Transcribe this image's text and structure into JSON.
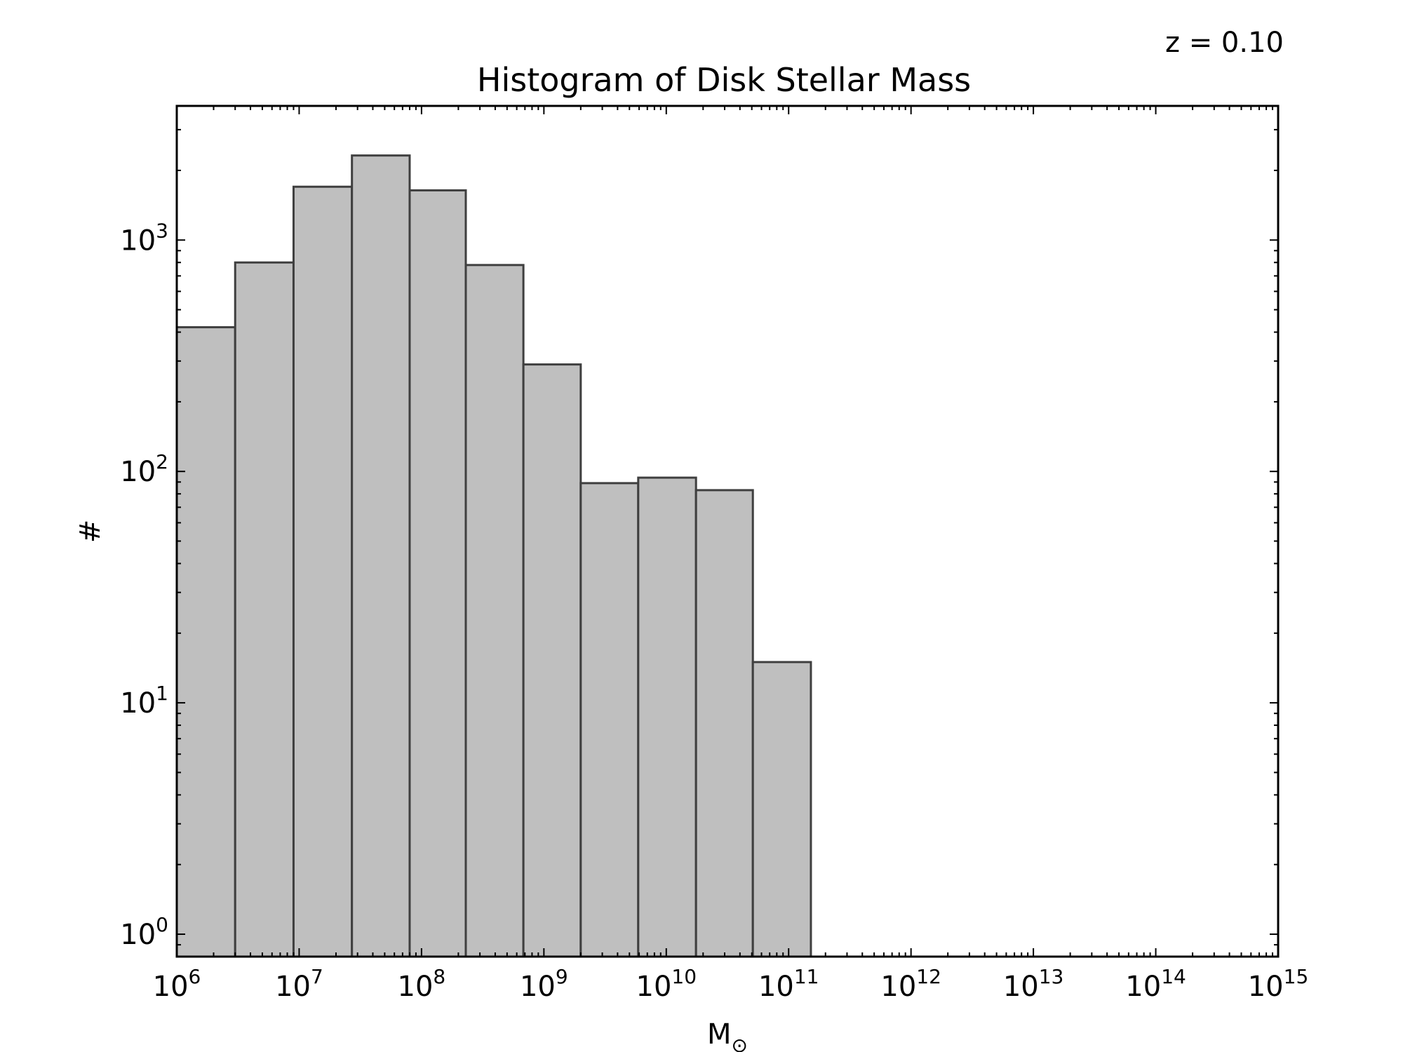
{
  "chart_data": {
    "type": "bar",
    "title": "Histogram of Disk Stellar Mass",
    "annotation": "z = 0.10",
    "xlabel": "M",
    "xlabel_subscript": "⊙",
    "ylabel": "#",
    "xscale": "log",
    "yscale": "log",
    "xlim": [
      1000000,
      1000000000000000
    ],
    "ylim": [
      0.8,
      3800
    ],
    "grid": false,
    "x_ticks": [
      {
        "base": "10",
        "exp": "6",
        "value": 1000000.0
      },
      {
        "base": "10",
        "exp": "7",
        "value": 10000000.0
      },
      {
        "base": "10",
        "exp": "8",
        "value": 100000000.0
      },
      {
        "base": "10",
        "exp": "9",
        "value": 1000000000.0
      },
      {
        "base": "10",
        "exp": "10",
        "value": 10000000000.0
      },
      {
        "base": "10",
        "exp": "11",
        "value": 100000000000.0
      },
      {
        "base": "10",
        "exp": "12",
        "value": 1000000000000.0
      },
      {
        "base": "10",
        "exp": "13",
        "value": 10000000000000.0
      },
      {
        "base": "10",
        "exp": "14",
        "value": 100000000000000.0
      },
      {
        "base": "10",
        "exp": "15",
        "value": 1000000000000000.0
      }
    ],
    "y_ticks": [
      {
        "base": "10",
        "exp": "0",
        "value": 1
      },
      {
        "base": "10",
        "exp": "1",
        "value": 10
      },
      {
        "base": "10",
        "exp": "2",
        "value": 100
      },
      {
        "base": "10",
        "exp": "3",
        "value": 1000
      }
    ],
    "bin_edges": [
      1000000,
      3000000,
      9000000,
      27000000,
      80000000,
      230000000,
      680000000,
      2000000000,
      5900000000,
      17500000000,
      51000000000,
      152000000000
    ],
    "values": [
      420,
      800,
      1700,
      2320,
      1640,
      780,
      290,
      89,
      94,
      83,
      15
    ]
  },
  "colors": {
    "bar_fill": "#bfbfbf",
    "bar_edge": "#3f3f3f",
    "axes": "#000000"
  }
}
